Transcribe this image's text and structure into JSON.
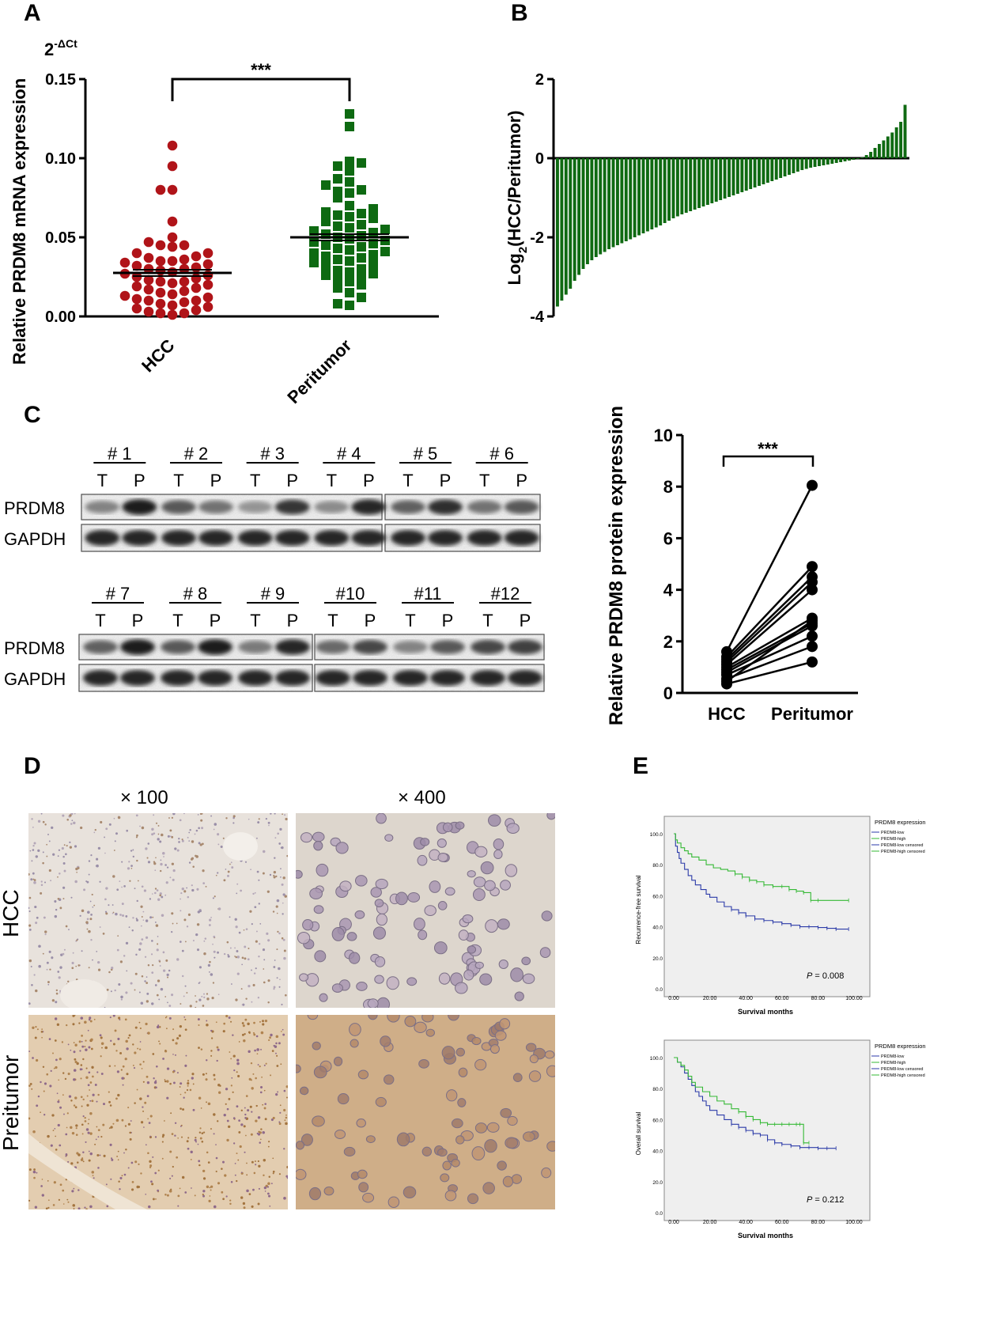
{
  "panels": {
    "a": "A",
    "b": "B",
    "c": "C",
    "d": "D",
    "e": "E"
  },
  "panel_a": {
    "chart_data": {
      "type": "scatter",
      "ylabel": "Relative PRDM8 mRNA expression",
      "y_unit": "2-ΔCt",
      "y_unit_base": "2",
      "y_unit_sup": "-ΔCt",
      "yticks": [
        "0.00",
        "0.05",
        "0.10",
        "0.15"
      ],
      "ylim": [
        0,
        0.15
      ],
      "categories": [
        "HCC",
        "Peritumor"
      ],
      "significance": "***",
      "colors": {
        "HCC": "#b01419",
        "Peritumor": "#0e6a12"
      },
      "means": {
        "HCC": 0.0275,
        "Peritumor": 0.05
      },
      "series": [
        {
          "name": "HCC",
          "values": [
            0.108,
            0.095,
            0.08,
            0.08,
            0.06,
            0.05,
            0.047,
            0.045,
            0.045,
            0.044,
            0.04,
            0.04,
            0.038,
            0.037,
            0.036,
            0.035,
            0.035,
            0.034,
            0.033,
            0.032,
            0.031,
            0.03,
            0.03,
            0.029,
            0.028,
            0.027,
            0.026,
            0.025,
            0.024,
            0.023,
            0.022,
            0.022,
            0.021,
            0.02,
            0.019,
            0.018,
            0.017,
            0.016,
            0.015,
            0.014,
            0.013,
            0.012,
            0.011,
            0.01,
            0.01,
            0.009,
            0.008,
            0.007,
            0.006,
            0.005,
            0.004,
            0.003,
            0.002,
            0.002,
            0.001
          ]
        },
        {
          "name": "Peritumor",
          "values": [
            0.128,
            0.12,
            0.098,
            0.097,
            0.095,
            0.092,
            0.087,
            0.085,
            0.083,
            0.08,
            0.079,
            0.078,
            0.075,
            0.07,
            0.068,
            0.066,
            0.065,
            0.064,
            0.063,
            0.062,
            0.06,
            0.058,
            0.057,
            0.056,
            0.055,
            0.054,
            0.053,
            0.052,
            0.051,
            0.05,
            0.049,
            0.048,
            0.047,
            0.046,
            0.045,
            0.044,
            0.043,
            0.042,
            0.041,
            0.04,
            0.039,
            0.038,
            0.037,
            0.036,
            0.035,
            0.034,
            0.033,
            0.032,
            0.03,
            0.029,
            0.028,
            0.027,
            0.026,
            0.025,
            0.024,
            0.022,
            0.02,
            0.018,
            0.015,
            0.012,
            0.008,
            0.007
          ]
        }
      ]
    }
  },
  "panel_b": {
    "chart_data": {
      "type": "bar",
      "ylabel": "Log",
      "ylabel_sub": "2",
      "ylabel_rest": "(HCC/Peritumor)",
      "yticks": [
        "2",
        "0",
        "-2",
        "-4"
      ],
      "ylim": [
        -4,
        2
      ],
      "color": "#0f6a12",
      "values": [
        -3.75,
        -3.6,
        -3.45,
        -3.3,
        -3.1,
        -2.95,
        -2.8,
        -2.68,
        -2.58,
        -2.5,
        -2.43,
        -2.37,
        -2.3,
        -2.25,
        -2.2,
        -2.15,
        -2.1,
        -2.05,
        -2.0,
        -1.95,
        -1.9,
        -1.85,
        -1.8,
        -1.75,
        -1.7,
        -1.64,
        -1.58,
        -1.52,
        -1.47,
        -1.42,
        -1.38,
        -1.34,
        -1.3,
        -1.26,
        -1.22,
        -1.18,
        -1.14,
        -1.1,
        -1.06,
        -1.02,
        -0.98,
        -0.94,
        -0.9,
        -0.86,
        -0.82,
        -0.78,
        -0.74,
        -0.7,
        -0.66,
        -0.62,
        -0.58,
        -0.54,
        -0.5,
        -0.46,
        -0.42,
        -0.38,
        -0.34,
        -0.3,
        -0.27,
        -0.24,
        -0.22,
        -0.2,
        -0.18,
        -0.16,
        -0.14,
        -0.12,
        -0.1,
        -0.08,
        -0.06,
        -0.04,
        -0.02,
        0.02,
        0.08,
        0.16,
        0.26,
        0.36,
        0.45,
        0.55,
        0.65,
        0.78,
        0.92,
        1.35
      ]
    }
  },
  "panel_c": {
    "blots": {
      "row1": {
        "samples": [
          "# 1",
          "# 2",
          "# 3",
          "# 4",
          "# 5",
          "# 6"
        ]
      },
      "row2": {
        "samples": [
          "# 7",
          "# 8",
          "# 9",
          "#10",
          "#11",
          "#12"
        ]
      },
      "lane_t": "T",
      "lane_p": "P",
      "protein": "PRDM8",
      "loading": "GAPDH"
    },
    "chart_data": {
      "type": "line",
      "ylabel": "Relative PRDM8 protein expression",
      "yticks": [
        "0",
        "2",
        "4",
        "6",
        "8",
        "10"
      ],
      "ylim": [
        0,
        10
      ],
      "categories": [
        "HCC",
        "Peritumor"
      ],
      "significance": "***",
      "pairs": [
        [
          1.6,
          8.05
        ],
        [
          1.4,
          4.9
        ],
        [
          1.3,
          4.5
        ],
        [
          1.2,
          4.3
        ],
        [
          1.1,
          4.0
        ],
        [
          1.0,
          2.9
        ],
        [
          0.9,
          2.7
        ],
        [
          0.8,
          2.6
        ],
        [
          0.7,
          2.2
        ],
        [
          0.55,
          1.8
        ],
        [
          0.45,
          2.8
        ],
        [
          0.35,
          1.2
        ]
      ]
    }
  },
  "panel_d": {
    "magnifications": [
      "× 100",
      "× 400"
    ],
    "rows": [
      "HCC",
      "Preitumor"
    ]
  },
  "panel_e": {
    "legend_title": "PRDM8 expression",
    "legend_items": [
      "PRDM8-low",
      "PRDM8-high",
      "PRDM8-low censored",
      "PRDM8-high censored"
    ],
    "colors": {
      "low": "#2b3aa8",
      "high": "#35b935"
    },
    "xlabel": "Survival months",
    "xticks": [
      "0.00",
      "20.00",
      "40.00",
      "60.00",
      "80.00",
      "100.00"
    ],
    "yticks": [
      "0.0",
      "20.0",
      "40.0",
      "60.0",
      "80.0",
      "100.0"
    ],
    "plots": [
      {
        "ylabel": "Recurrence-free survival",
        "p_label": "P",
        "p_value": " = 0.008",
        "chart_data": {
          "type": "line",
          "series": [
            {
              "name": "PRDM8-low",
              "x": [
                0,
                1,
                2,
                3,
                4,
                6,
                8,
                10,
                12,
                15,
                18,
                20,
                24,
                28,
                32,
                36,
                40,
                45,
                50,
                55,
                60,
                65,
                70,
                75,
                80,
                85,
                90,
                97
              ],
              "y": [
                100,
                92,
                88,
                84,
                81,
                77,
                73,
                70,
                67,
                64,
                61,
                59,
                56,
                53,
                51,
                49,
                47,
                45,
                44,
                43,
                42,
                41,
                40,
                40,
                39.5,
                39,
                38.5,
                38.5
              ]
            },
            {
              "name": "PRDM8-high",
              "x": [
                0,
                1,
                2,
                4,
                6,
                8,
                10,
                14,
                18,
                22,
                26,
                30,
                34,
                38,
                42,
                46,
                50,
                55,
                60,
                64,
                68,
                72,
                76,
                80,
                97
              ],
              "y": [
                100,
                96,
                94,
                91,
                89,
                87,
                85,
                83,
                80,
                78,
                77,
                76,
                74,
                72,
                70,
                69,
                67,
                66,
                66,
                64,
                63,
                62,
                57,
                57,
                57
              ]
            }
          ]
        }
      },
      {
        "ylabel": "Overall survival",
        "p_label": "P",
        "p_value": " = 0.212",
        "chart_data": {
          "type": "line",
          "series": [
            {
              "name": "PRDM8-low",
              "x": [
                0,
                2,
                4,
                6,
                8,
                10,
                12,
                14,
                16,
                18,
                20,
                24,
                28,
                32,
                36,
                40,
                44,
                48,
                52,
                56,
                60,
                65,
                70,
                75,
                80,
                85,
                90
              ],
              "y": [
                100,
                97,
                94,
                90,
                86,
                82,
                78,
                75,
                72,
                69,
                66,
                63,
                60,
                57,
                55,
                53,
                51,
                50,
                47,
                45,
                44,
                43,
                42,
                42,
                41.5,
                41.5,
                41.5
              ]
            },
            {
              "name": "PRDM8-high",
              "x": [
                0,
                2,
                4,
                6,
                8,
                10,
                12,
                16,
                20,
                24,
                28,
                32,
                36,
                40,
                44,
                48,
                52,
                56,
                60,
                64,
                68,
                70,
                72,
                75
              ],
              "y": [
                100,
                97,
                95,
                92,
                88,
                84,
                81,
                78,
                75,
                72,
                70,
                67,
                65,
                62,
                60,
                58,
                57,
                57,
                57,
                57,
                57,
                57,
                45,
                45
              ]
            }
          ]
        }
      }
    ]
  }
}
